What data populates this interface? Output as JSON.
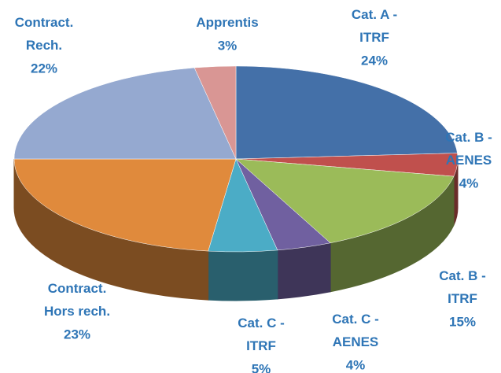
{
  "chart_data": {
    "type": "pie3d",
    "categories": [
      "Cat. A -\nITRF",
      "Cat. B -\nAENES",
      "Cat. B -\nITRF",
      "Cat. C -\nAENES",
      "Cat. C -\nITRF",
      "Contract.\nHors rech.",
      "Contract.\nRech.",
      "Apprentis"
    ],
    "values": [
      24,
      4,
      15,
      4,
      5,
      23,
      22,
      3
    ],
    "value_labels": [
      "24%",
      "4%",
      "15%",
      "4%",
      "5%",
      "23%",
      "22%",
      "3%"
    ],
    "colors": [
      "#4470a8",
      "#c0504d",
      "#9bbb59",
      "#7060a0",
      "#4bacc6",
      "#e08a3c",
      "#95a9d0",
      "#d99694"
    ]
  }
}
